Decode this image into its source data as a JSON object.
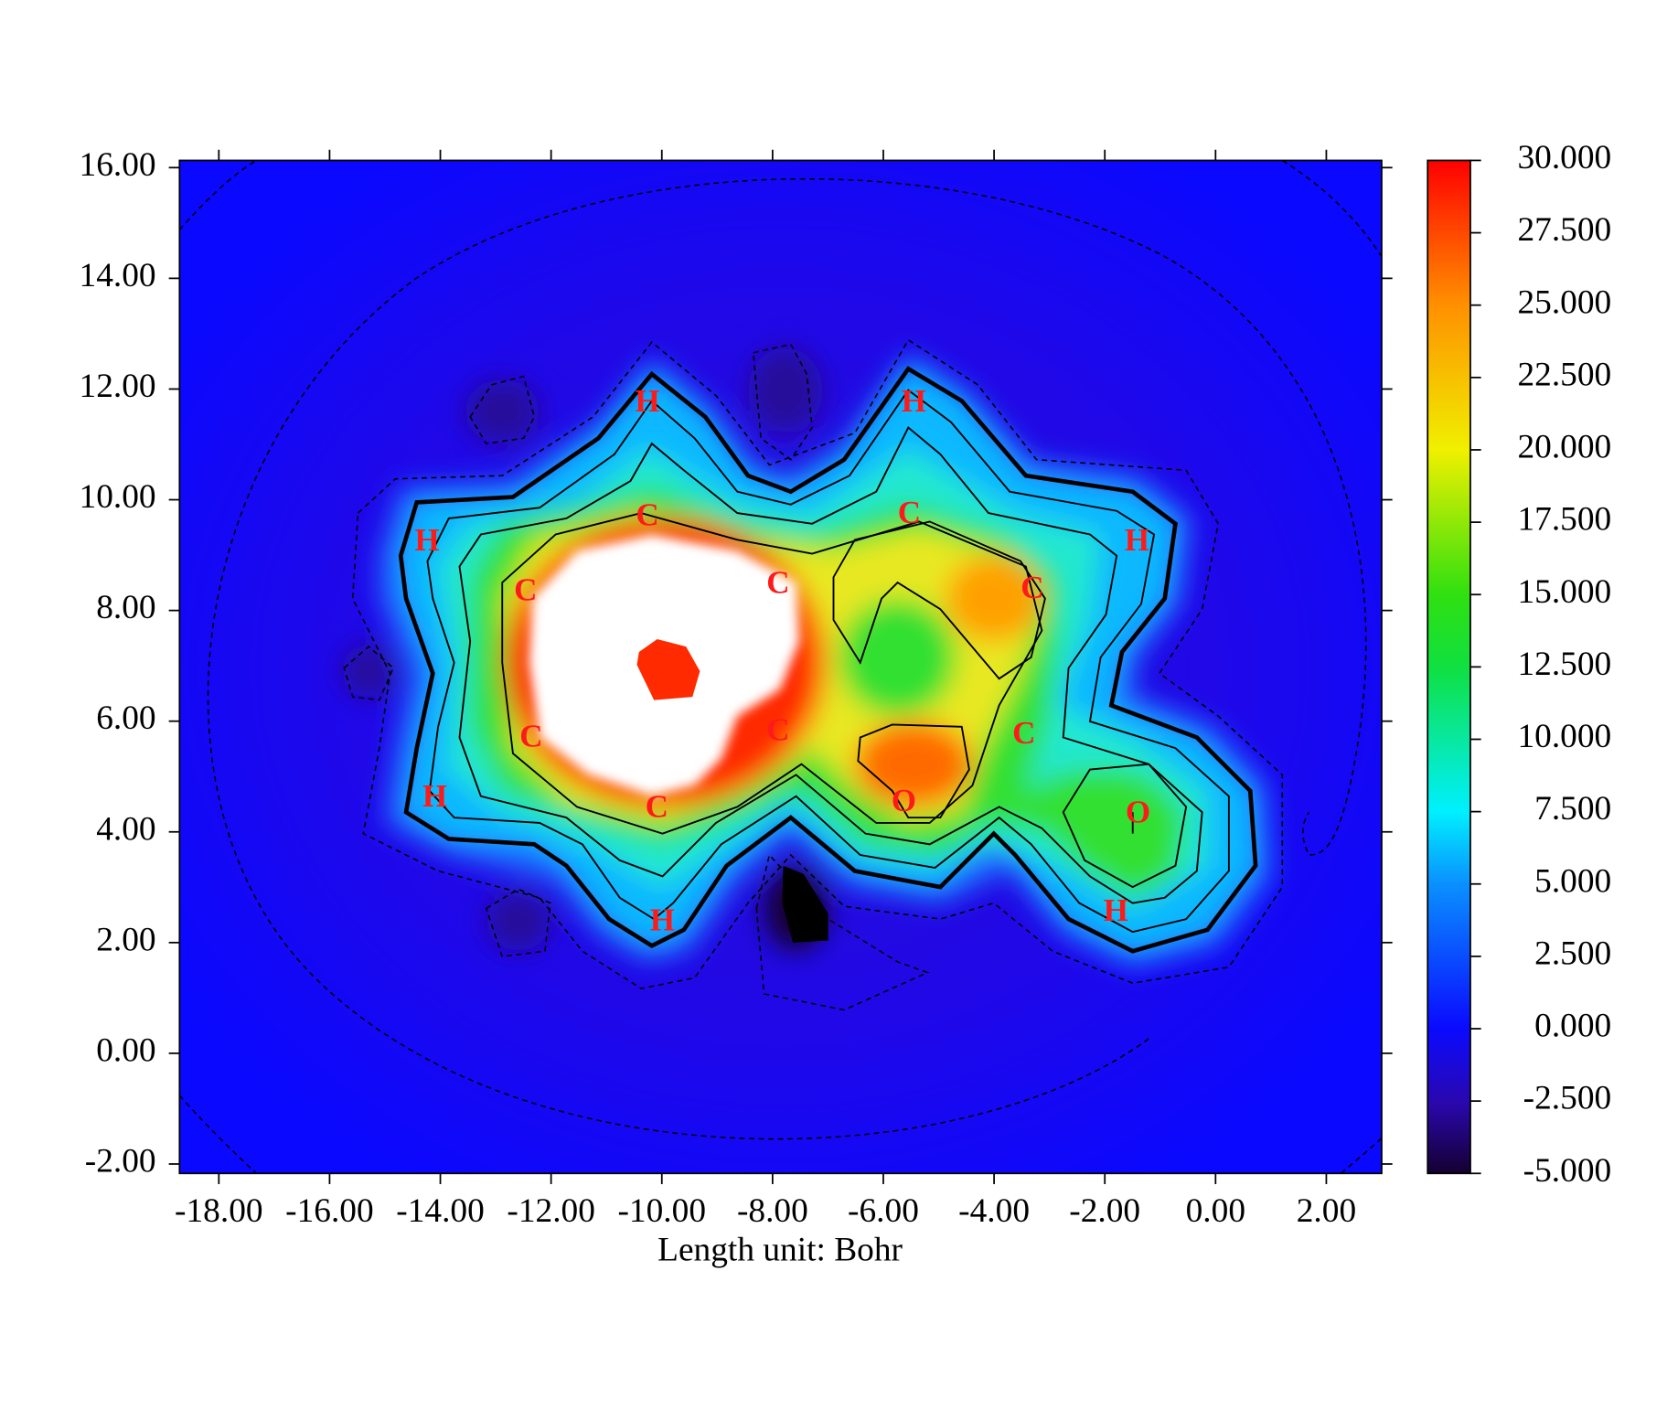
{
  "chart_data": {
    "type": "heatmap",
    "xlabel": "Length unit: Bohr",
    "xlim": [
      -18.71,
      3.0
    ],
    "ylim": [
      -2.17,
      16.13
    ],
    "xticks": [
      {
        "value": -18,
        "label": "-18.00"
      },
      {
        "value": -16,
        "label": "-16.00"
      },
      {
        "value": -14,
        "label": "-14.00"
      },
      {
        "value": -12,
        "label": "-12.00"
      },
      {
        "value": -10,
        "label": "-10.00"
      },
      {
        "value": -8,
        "label": "-8.00"
      },
      {
        "value": -6,
        "label": "-6.00"
      },
      {
        "value": -4,
        "label": "-4.00"
      },
      {
        "value": -2,
        "label": "-2.00"
      },
      {
        "value": 0,
        "label": "0.00"
      },
      {
        "value": 2,
        "label": "2.00"
      }
    ],
    "yticks": [
      {
        "value": -2,
        "label": "-2.00"
      },
      {
        "value": 0,
        "label": "0.00"
      },
      {
        "value": 2,
        "label": "2.00"
      },
      {
        "value": 4,
        "label": "4.00"
      },
      {
        "value": 6,
        "label": "6.00"
      },
      {
        "value": 8,
        "label": "8.00"
      },
      {
        "value": 10,
        "label": "10.00"
      },
      {
        "value": 12,
        "label": "12.00"
      },
      {
        "value": 14,
        "label": "14.00"
      },
      {
        "value": 16,
        "label": "16.00"
      }
    ],
    "clim": [
      -5,
      30
    ],
    "cticks": [
      {
        "value": 30,
        "label": "30.000"
      },
      {
        "value": 27.5,
        "label": "27.500"
      },
      {
        "value": 25,
        "label": "25.000"
      },
      {
        "value": 22.5,
        "label": "22.500"
      },
      {
        "value": 20,
        "label": "20.000"
      },
      {
        "value": 17.5,
        "label": "17.500"
      },
      {
        "value": 15,
        "label": "15.000"
      },
      {
        "value": 12.5,
        "label": "12.500"
      },
      {
        "value": 10,
        "label": "10.000"
      },
      {
        "value": 7.5,
        "label": "7.500"
      },
      {
        "value": 5,
        "label": "5.000"
      },
      {
        "value": 2.5,
        "label": "2.500"
      },
      {
        "value": 0,
        "label": "0.000"
      },
      {
        "value": -2.5,
        "label": "-2.500"
      },
      {
        "value": -5,
        "label": "-5.000"
      }
    ],
    "colorscale": [
      {
        "value": -5,
        "color": "#150030"
      },
      {
        "value": -2.5,
        "color": "#2a08b0"
      },
      {
        "value": 0,
        "color": "#0a0aff"
      },
      {
        "value": 5,
        "color": "#0a90ff"
      },
      {
        "value": 7.5,
        "color": "#00f0ff"
      },
      {
        "value": 12.5,
        "color": "#10e040"
      },
      {
        "value": 15,
        "color": "#30e010"
      },
      {
        "value": 20,
        "color": "#f0f000"
      },
      {
        "value": 25,
        "color": "#ff9000"
      },
      {
        "value": 30,
        "color": "#ff0000"
      }
    ],
    "atoms": [
      {
        "label": "H",
        "x": -10.26,
        "y": 11.73
      },
      {
        "label": "H",
        "x": -5.45,
        "y": 11.73
      },
      {
        "label": "C",
        "x": -10.26,
        "y": 9.67
      },
      {
        "label": "C",
        "x": -5.53,
        "y": 9.71
      },
      {
        "label": "H",
        "x": -14.24,
        "y": 9.22
      },
      {
        "label": "H",
        "x": -1.42,
        "y": 9.22
      },
      {
        "label": "C",
        "x": -12.46,
        "y": 8.32
      },
      {
        "label": "C",
        "x": -7.9,
        "y": 8.45
      },
      {
        "label": "C",
        "x": -3.31,
        "y": 8.36
      },
      {
        "label": "C",
        "x": -12.36,
        "y": 5.67
      },
      {
        "label": "C",
        "x": -7.9,
        "y": 5.79
      },
      {
        "label": "C",
        "x": -3.46,
        "y": 5.73
      },
      {
        "label": "H",
        "x": -14.1,
        "y": 4.59
      },
      {
        "label": "O",
        "x": -5.63,
        "y": 4.51
      },
      {
        "label": "O",
        "x": -1.4,
        "y": 4.3
      },
      {
        "label": "C",
        "x": -10.09,
        "y": 4.4
      },
      {
        "label": "H",
        "x": -9.99,
        "y": 2.35
      },
      {
        "label": "H",
        "x": -1.8,
        "y": 2.53
      }
    ]
  }
}
